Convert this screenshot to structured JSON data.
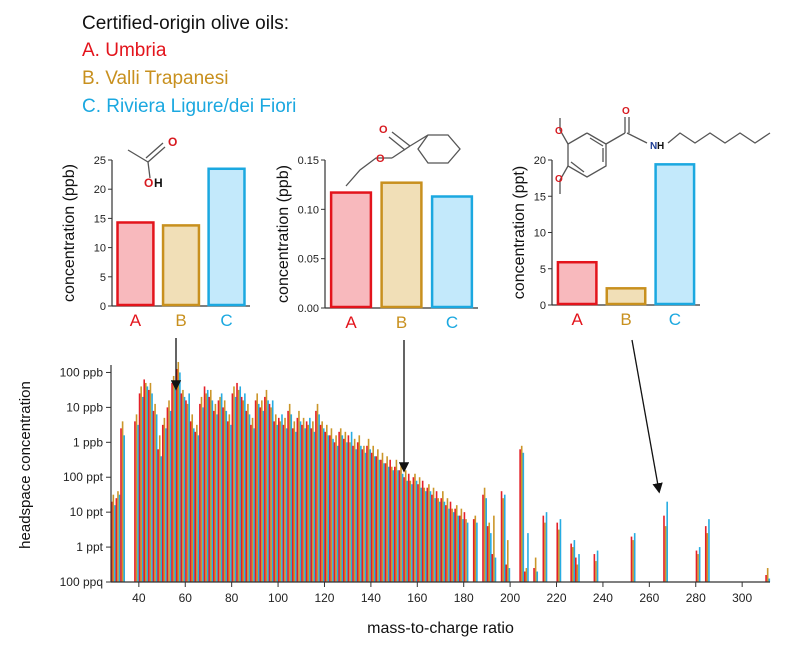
{
  "legend": {
    "title": "Certified-origin olive oils:",
    "items": [
      {
        "label": "A. Umbria",
        "color": "#e3141c"
      },
      {
        "label": "B. Valli Trapanesi",
        "color": "#c8901e"
      },
      {
        "label": "C. Riviera Ligure/dei Fiori",
        "color": "#1ba8e0"
      }
    ]
  },
  "chart_data": [
    {
      "type": "bar",
      "categories": [
        "A",
        "B",
        "C"
      ],
      "values": [
        14.3,
        13.8,
        23.5
      ],
      "ylabel": "concentration (ppb)",
      "ylim": [
        0,
        25
      ],
      "yticks": [
        0,
        5,
        10,
        15,
        20,
        25
      ],
      "ytick_labels": [
        "0",
        "5",
        "10",
        "15",
        "20",
        "25"
      ],
      "molecule": "acetic-acid",
      "molecule_atoms": [
        "O",
        "OH"
      ]
    },
    {
      "type": "bar",
      "categories": [
        "A",
        "B",
        "C"
      ],
      "values": [
        0.117,
        0.127,
        0.113
      ],
      "ylabel": "concentration (ppb)",
      "ylim": [
        0,
        0.15
      ],
      "yticks": [
        0,
        0.05,
        0.1,
        0.15
      ],
      "ytick_labels": [
        "0.00",
        "0.05",
        "0.10",
        "0.15"
      ],
      "molecule": "ethyl-cyclohexanecarboxylate",
      "molecule_atoms": [
        "O",
        "O"
      ]
    },
    {
      "type": "bar",
      "categories": [
        "A",
        "B",
        "C"
      ],
      "values": [
        5.9,
        2.3,
        19.4
      ],
      "ylabel": "concentration (ppt)",
      "ylim": [
        0,
        20
      ],
      "yticks": [
        0,
        5,
        10,
        15,
        20
      ],
      "ytick_labels": [
        "0",
        "5",
        "10",
        "15",
        "20"
      ],
      "molecule": "n-hexyl-3,4-dimethoxybenzamide",
      "molecule_atoms": [
        "O",
        "O",
        "O",
        "N",
        "H"
      ]
    },
    {
      "type": "bar",
      "scale": "log",
      "xlabel": "mass-to-charge ratio",
      "ylabel": "headspace concentration",
      "xlim": [
        28,
        312
      ],
      "xticks": [
        40,
        60,
        80,
        100,
        120,
        140,
        160,
        180,
        200,
        220,
        240,
        260,
        280,
        300
      ],
      "ylim_log10": [
        -4,
        2.5
      ],
      "yticks": [
        {
          "label": "100 ppb",
          "log10": 2
        },
        {
          "label": "10 ppb",
          "log10": 1
        },
        {
          "label": "1 ppb",
          "log10": 0
        },
        {
          "label": "100 ppt",
          "log10": -1
        },
        {
          "label": "10 ppt",
          "log10": -2
        },
        {
          "label": "1 ppt",
          "log10": -3
        },
        {
          "label": "100 ppq",
          "log10": -4
        }
      ],
      "series": [
        "A",
        "B",
        "C"
      ],
      "peaks": [
        {
          "mz": 29,
          "A": -1.7,
          "B": -1.5,
          "C": -1.8
        },
        {
          "mz": 31,
          "A": -1.6,
          "B": -1.4,
          "C": -1.5
        },
        {
          "mz": 33,
          "A": 0.4,
          "B": 0.6,
          "C": 0.2
        },
        {
          "mz": 39,
          "A": 0.6,
          "B": 0.8,
          "C": 0.5
        },
        {
          "mz": 41,
          "A": 1.4,
          "B": 1.6,
          "C": 1.3
        },
        {
          "mz": 43,
          "A": 1.8,
          "B": 1.7,
          "C": 1.6
        },
        {
          "mz": 45,
          "A": 1.5,
          "B": 1.7,
          "C": 1.4
        },
        {
          "mz": 47,
          "A": 0.9,
          "B": 1.1,
          "C": 0.8
        },
        {
          "mz": 49,
          "A": -0.2,
          "B": 0.2,
          "C": -0.4
        },
        {
          "mz": 51,
          "A": 0.5,
          "B": 0.7,
          "C": 0.4
        },
        {
          "mz": 53,
          "A": 1.0,
          "B": 1.2,
          "C": 0.9
        },
        {
          "mz": 55,
          "A": 1.7,
          "B": 1.9,
          "C": 1.6
        },
        {
          "mz": 57,
          "A": 2.1,
          "B": 2.3,
          "C": 2.0
        },
        {
          "mz": 59,
          "A": 1.4,
          "B": 1.5,
          "C": 1.3
        },
        {
          "mz": 61,
          "A": 1.2,
          "B": 1.1,
          "C": 1.4
        },
        {
          "mz": 63,
          "A": 0.6,
          "B": 0.8,
          "C": 0.4
        },
        {
          "mz": 65,
          "A": 0.3,
          "B": 0.5,
          "C": 0.2
        },
        {
          "mz": 67,
          "A": 1.1,
          "B": 1.3,
          "C": 1.0
        },
        {
          "mz": 69,
          "A": 1.6,
          "B": 1.4,
          "C": 1.5
        },
        {
          "mz": 71,
          "A": 1.3,
          "B": 1.5,
          "C": 1.2
        },
        {
          "mz": 73,
          "A": 0.9,
          "B": 1.1,
          "C": 0.8
        },
        {
          "mz": 75,
          "A": 1.2,
          "B": 1.3,
          "C": 1.4
        },
        {
          "mz": 77,
          "A": 1.0,
          "B": 1.2,
          "C": 0.9
        },
        {
          "mz": 79,
          "A": 0.6,
          "B": 0.8,
          "C": 0.5
        },
        {
          "mz": 81,
          "A": 1.4,
          "B": 1.6,
          "C": 1.3
        },
        {
          "mz": 83,
          "A": 1.7,
          "B": 1.5,
          "C": 1.6
        },
        {
          "mz": 85,
          "A": 1.3,
          "B": 1.2,
          "C": 1.4
        },
        {
          "mz": 87,
          "A": 0.9,
          "B": 1.1,
          "C": 0.8
        },
        {
          "mz": 89,
          "A": 0.5,
          "B": 0.7,
          "C": 0.4
        },
        {
          "mz": 91,
          "A": 1.2,
          "B": 1.4,
          "C": 1.1
        },
        {
          "mz": 93,
          "A": 1.0,
          "B": 1.2,
          "C": 0.9
        },
        {
          "mz": 95,
          "A": 1.3,
          "B": 1.5,
          "C": 1.2
        },
        {
          "mz": 97,
          "A": 1.1,
          "B": 1.0,
          "C": 1.2
        },
        {
          "mz": 99,
          "A": 0.6,
          "B": 0.8,
          "C": 0.5
        },
        {
          "mz": 101,
          "A": 0.7,
          "B": 0.6,
          "C": 0.8
        },
        {
          "mz": 103,
          "A": 0.5,
          "B": 0.7,
          "C": 0.4
        },
        {
          "mz": 105,
          "A": 0.9,
          "B": 1.1,
          "C": 0.8
        },
        {
          "mz": 107,
          "A": 0.4,
          "B": 0.6,
          "C": 0.3
        },
        {
          "mz": 109,
          "A": 0.7,
          "B": 0.9,
          "C": 0.6
        },
        {
          "mz": 111,
          "A": 0.5,
          "B": 0.7,
          "C": 0.4
        },
        {
          "mz": 113,
          "A": 0.6,
          "B": 0.5,
          "C": 0.7
        },
        {
          "mz": 115,
          "A": 0.4,
          "B": 0.6,
          "C": 0.3
        },
        {
          "mz": 117,
          "A": 0.9,
          "B": 1.1,
          "C": 0.8
        },
        {
          "mz": 119,
          "A": 0.5,
          "B": 0.6,
          "C": 0.4
        },
        {
          "mz": 121,
          "A": 0.3,
          "B": 0.5,
          "C": 0.2
        },
        {
          "mz": 123,
          "A": 0.2,
          "B": 0.4,
          "C": 0.1
        },
        {
          "mz": 125,
          "A": 0.0,
          "B": 0.2,
          "C": -0.1
        },
        {
          "mz": 127,
          "A": 0.3,
          "B": 0.4,
          "C": 0.2
        },
        {
          "mz": 129,
          "A": 0.1,
          "B": 0.3,
          "C": 0.0
        },
        {
          "mz": 131,
          "A": 0.2,
          "B": 0.0,
          "C": 0.3
        },
        {
          "mz": 133,
          "A": -0.1,
          "B": 0.1,
          "C": -0.2
        },
        {
          "mz": 135,
          "A": 0.0,
          "B": 0.2,
          "C": -0.1
        },
        {
          "mz": 137,
          "A": -0.2,
          "B": -0.1,
          "C": -0.3
        },
        {
          "mz": 139,
          "A": -0.1,
          "B": 0.1,
          "C": -0.2
        },
        {
          "mz": 141,
          "A": -0.3,
          "B": -0.1,
          "C": -0.4
        },
        {
          "mz": 143,
          "A": -0.4,
          "B": -0.2,
          "C": -0.5
        },
        {
          "mz": 145,
          "A": -0.5,
          "B": -0.3,
          "C": -0.6
        },
        {
          "mz": 147,
          "A": -0.6,
          "B": -0.4,
          "C": -0.7
        },
        {
          "mz": 149,
          "A": -0.5,
          "B": -0.7,
          "C": -0.8
        },
        {
          "mz": 151,
          "A": -0.7,
          "B": -0.5,
          "C": -0.8
        },
        {
          "mz": 153,
          "A": -0.8,
          "B": -0.6,
          "C": -0.9
        },
        {
          "mz": 155,
          "A": -1.0,
          "B": -0.8,
          "C": -1.1
        },
        {
          "mz": 157,
          "A": -0.9,
          "B": -1.1,
          "C": -1.2
        },
        {
          "mz": 159,
          "A": -1.0,
          "B": -0.9,
          "C": -1.1
        },
        {
          "mz": 161,
          "A": -1.2,
          "B": -1.0,
          "C": -1.3
        },
        {
          "mz": 163,
          "A": -1.1,
          "B": -1.3,
          "C": -1.4
        },
        {
          "mz": 165,
          "A": -1.3,
          "B": -1.2,
          "C": -1.4
        },
        {
          "mz": 167,
          "A": -1.5,
          "B": -1.3,
          "C": -1.6
        },
        {
          "mz": 169,
          "A": -1.4,
          "B": -1.6,
          "C": -1.7
        },
        {
          "mz": 171,
          "A": -1.6,
          "B": -1.4,
          "C": -1.7
        },
        {
          "mz": 173,
          "A": -1.8,
          "B": -1.6,
          "C": -1.9
        },
        {
          "mz": 175,
          "A": -1.7,
          "B": -1.9,
          "C": -2.0
        },
        {
          "mz": 177,
          "A": -1.9,
          "B": -1.8,
          "C": -2.1
        },
        {
          "mz": 179,
          "A": -2.1,
          "B": -1.9,
          "C": -2.2
        },
        {
          "mz": 181,
          "A": -2.0,
          "B": -2.2,
          "C": -2.3
        },
        {
          "mz": 185,
          "A": -2.2,
          "B": -2.1,
          "C": -2.3
        },
        {
          "mz": 189,
          "A": -1.5,
          "B": -1.3,
          "C": -1.6
        },
        {
          "mz": 191,
          "A": -2.4,
          "B": -2.3,
          "C": -2.6
        },
        {
          "mz": 193,
          "A": -3.2,
          "B": -2.1,
          "C": -3.3
        },
        {
          "mz": 197,
          "A": -1.4,
          "B": -1.6,
          "C": -1.5
        },
        {
          "mz": 199,
          "A": -3.5,
          "B": -2.8,
          "C": -3.6
        },
        {
          "mz": 205,
          "A": -0.2,
          "B": -0.1,
          "C": -0.3
        },
        {
          "mz": 207,
          "A": -3.7,
          "B": -3.6,
          "C": -2.6
        },
        {
          "mz": 211,
          "A": -3.6,
          "B": -3.3,
          "C": -3.7
        },
        {
          "mz": 215,
          "A": -2.1,
          "B": -2.3,
          "C": -2.0
        },
        {
          "mz": 221,
          "A": -2.3,
          "B": -2.5,
          "C": -2.2
        },
        {
          "mz": 227,
          "A": -2.9,
          "B": -3.0,
          "C": -2.8
        },
        {
          "mz": 229,
          "A": -3.3,
          "B": -3.5,
          "C": -3.2
        },
        {
          "mz": 237,
          "A": -3.2,
          "B": -3.4,
          "C": -3.1
        },
        {
          "mz": 253,
          "A": -2.7,
          "B": -2.8,
          "C": -2.6
        },
        {
          "mz": 267,
          "A": -2.1,
          "B": -2.4,
          "C": -1.7
        },
        {
          "mz": 281,
          "A": -3.1,
          "B": -3.2,
          "C": -3.0
        },
        {
          "mz": 285,
          "A": -2.4,
          "B": -2.6,
          "C": -2.2
        },
        {
          "mz": 311,
          "A": -3.8,
          "B": -3.6,
          "C": -3.9
        }
      ]
    }
  ]
}
